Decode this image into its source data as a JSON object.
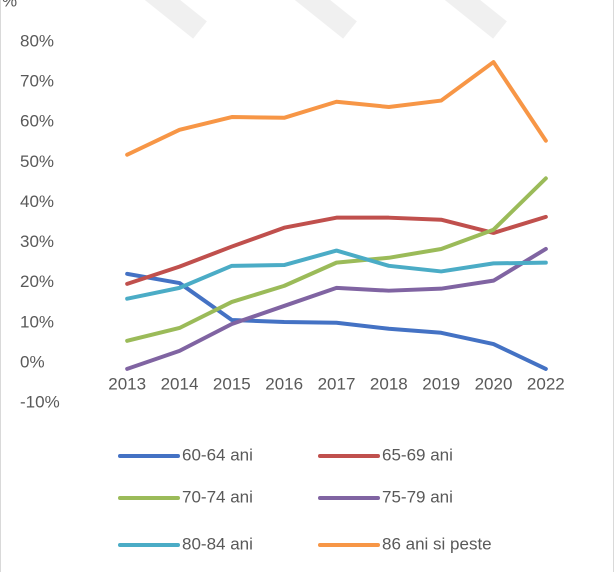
{
  "chart_data": {
    "type": "line",
    "y_label": "%",
    "categories": [
      "2013",
      "2014",
      "2015",
      "2016",
      "2017",
      "2018",
      "2019",
      "2020",
      "2022"
    ],
    "series": [
      {
        "name": "60-64 ani",
        "color": "#4472c4",
        "values": [
          22.2,
          19.9,
          10.7,
          10.2,
          10,
          8.5,
          7.5,
          4.7,
          -1.5
        ]
      },
      {
        "name": "65-69 ani",
        "color": "#c0504d",
        "values": [
          19.7,
          24,
          29,
          33.7,
          36.2,
          36.2,
          35.7,
          32.4,
          36.4
        ]
      },
      {
        "name": "70-74 ani",
        "color": "#9bbb59",
        "values": [
          5.5,
          8.7,
          15.2,
          19.2,
          25,
          26.2,
          28.4,
          33.2,
          46
        ]
      },
      {
        "name": "75-79 ani",
        "color": "#8064a2",
        "values": [
          -1.5,
          3,
          9.7,
          14.2,
          18.7,
          18,
          18.5,
          20.5,
          28.4
        ]
      },
      {
        "name": "80-84 ani",
        "color": "#4bacc6",
        "values": [
          16,
          18.7,
          24.2,
          24.4,
          28,
          24.2,
          22.8,
          24.8,
          25
        ]
      },
      {
        "name": "86 ani si peste",
        "color": "#f79646",
        "values": [
          51.9,
          58.1,
          61.3,
          61.1,
          65.1,
          63.8,
          65.4,
          75,
          55.4
        ]
      }
    ],
    "ylim": [
      -10,
      80
    ],
    "yticks": [
      {
        "value": -10,
        "label": "-10%"
      },
      {
        "value": 0,
        "label": "0%"
      },
      {
        "value": 10,
        "label": "10%"
      },
      {
        "value": 20,
        "label": "20%"
      },
      {
        "value": 30,
        "label": "30%"
      },
      {
        "value": 40,
        "label": "40%"
      },
      {
        "value": 50,
        "label": "50%"
      },
      {
        "value": 60,
        "label": "60%"
      },
      {
        "value": 70,
        "label": "70%"
      },
      {
        "value": 80,
        "label": "80%"
      }
    ],
    "grid": false,
    "legend": "bottom"
  }
}
